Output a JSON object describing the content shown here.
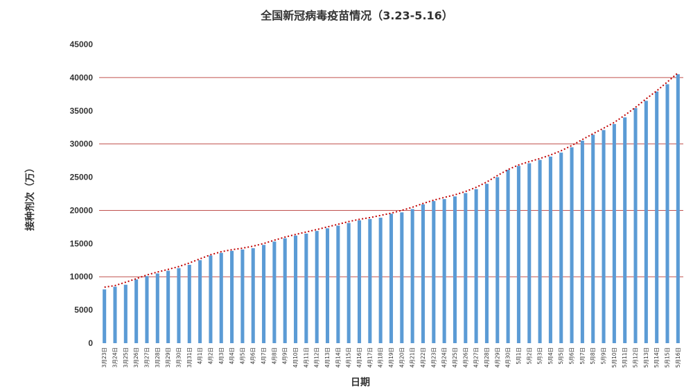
{
  "chart_data": {
    "type": "bar",
    "title": "全国新冠病毒疫苗情况（3.23-5.16）",
    "xlabel": "日期",
    "ylabel": "接种剂次（万）",
    "ylim": [
      0,
      45000
    ],
    "yticks": [
      0,
      5000,
      10000,
      15000,
      20000,
      25000,
      30000,
      35000,
      40000,
      45000
    ],
    "grid_lines": [
      10000,
      20000,
      30000,
      40000
    ],
    "colors": {
      "bar": "#5b9bd5",
      "grid": "#c0504d",
      "trend": "#c00000",
      "text": "#333333"
    },
    "trendline": "dotted",
    "categories": [
      "3月23日",
      "3月24日",
      "3月25日",
      "3月26日",
      "3月27日",
      "3月28日",
      "3月29日",
      "3月30日",
      "3月31日",
      "4月1日",
      "4月2日",
      "4月3日",
      "4月4日",
      "4月5日",
      "4月6日",
      "4月7日",
      "4月8日",
      "4月9日",
      "4月10日",
      "4月11日",
      "4月12日",
      "4月13日",
      "4月14日",
      "4月15日",
      "4月16日",
      "4月17日",
      "4月18日",
      "4月19日",
      "4月20日",
      "4月21日",
      "4月22日",
      "4月23日",
      "4月24日",
      "4月25日",
      "4月26日",
      "4月27日",
      "4月28日",
      "4月29日",
      "4月30日",
      "5月1日",
      "5月2日",
      "5月3日",
      "5月4日",
      "5月5日",
      "5月6日",
      "5月7日",
      "5月8日",
      "5月9日",
      "5月10日",
      "5月11日",
      "5月12日",
      "5月13日",
      "5月14日",
      "5月15日",
      "5月16日"
    ],
    "values": [
      8100,
      8500,
      8800,
      9600,
      10100,
      10500,
      10900,
      11300,
      11800,
      12500,
      13200,
      13600,
      13900,
      14100,
      14300,
      14800,
      15300,
      15800,
      16200,
      16500,
      16900,
      17300,
      17700,
      18100,
      18500,
      18700,
      18900,
      19500,
      19700,
      20200,
      20900,
      21400,
      21700,
      22100,
      22600,
      23200,
      24000,
      25000,
      26100,
      26700,
      27100,
      27600,
      28100,
      28700,
      29500,
      30500,
      31400,
      32100,
      33000,
      34000,
      35400,
      36500,
      37900,
      39000,
      40500
    ]
  }
}
